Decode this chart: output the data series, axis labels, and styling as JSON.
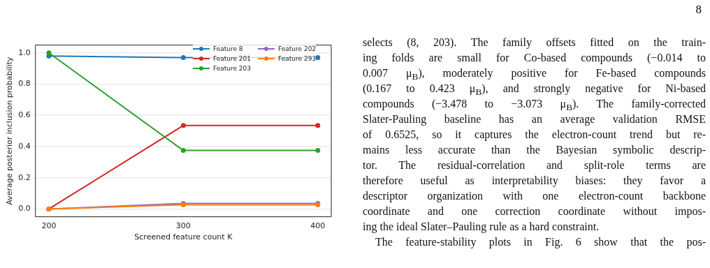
{
  "chart_data": {
    "type": "line",
    "x": [
      200,
      300,
      400
    ],
    "xlabel": "Screened feature count K",
    "ylabel": "Average posterior inclusion probability",
    "xlim": [
      190,
      410
    ],
    "xticks": [
      200,
      300,
      400
    ],
    "ylim": [
      -0.05,
      1.05
    ],
    "yticks": [
      {
        "value": 0,
        "label": "0.0"
      },
      {
        "value": 0.2,
        "label": "0.2"
      },
      {
        "value": 0.4,
        "label": "0.4"
      },
      {
        "value": 0.6,
        "label": "0.6"
      },
      {
        "value": 0.8,
        "label": "0.8"
      },
      {
        "value": 1,
        "label": "1.0"
      }
    ],
    "grid": "y",
    "legend": "top right",
    "marker": "circle",
    "line_style": "solid",
    "series": [
      {
        "name": "Feature 8",
        "color": "#1f77b4",
        "values": [
          0.98,
          0.97,
          0.97
        ]
      },
      {
        "name": "Feature 201",
        "color": "#d62728",
        "values": [
          0,
          0.535,
          0.535
        ]
      },
      {
        "name": "Feature 203",
        "color": "#2ca02c",
        "values": [
          1.0,
          0.375,
          0.375
        ]
      },
      {
        "name": "Feature 202",
        "color": "#9467bd",
        "values": [
          0,
          0.035,
          0.035
        ]
      },
      {
        "name": "Feature 293",
        "color": "#ff7f0e",
        "values": [
          0,
          0.027,
          0.027
        ]
      }
    ],
    "annotations": [
      "8",
      "selects (8, 203).  The family offsets fitted on the train-",
      "ing folds are small for Co-based compounds (−0.014 to",
      "0.007 μ$_{B}$), moderately positive for Fe-based compounds",
      "(0.167 to 0.423 μ$_{B}$), and strongly negative for Ni-based",
      "compounds (−3.478 to −3.073 μ$_{B}$). The family-corrected",
      "Slater-Pauling baseline has an average validation RMSE",
      "of 0.6525, so it captures the electron-count trend but re-",
      "mains less accurate than the Bayesian symbolic descrip-",
      "tor.  The residual-correlation and split-role terms are",
      "therefore useful as interpretability biases: they favor a",
      "descriptor organization with one electron-count backbone",
      "coordinate and one correction coordinate without impos-",
      "ing the ideal Slater–Pauling rule as a hard constraint.",
      "The feature-stability plots in Fig. 6 show that the pos-"
    ]
  }
}
